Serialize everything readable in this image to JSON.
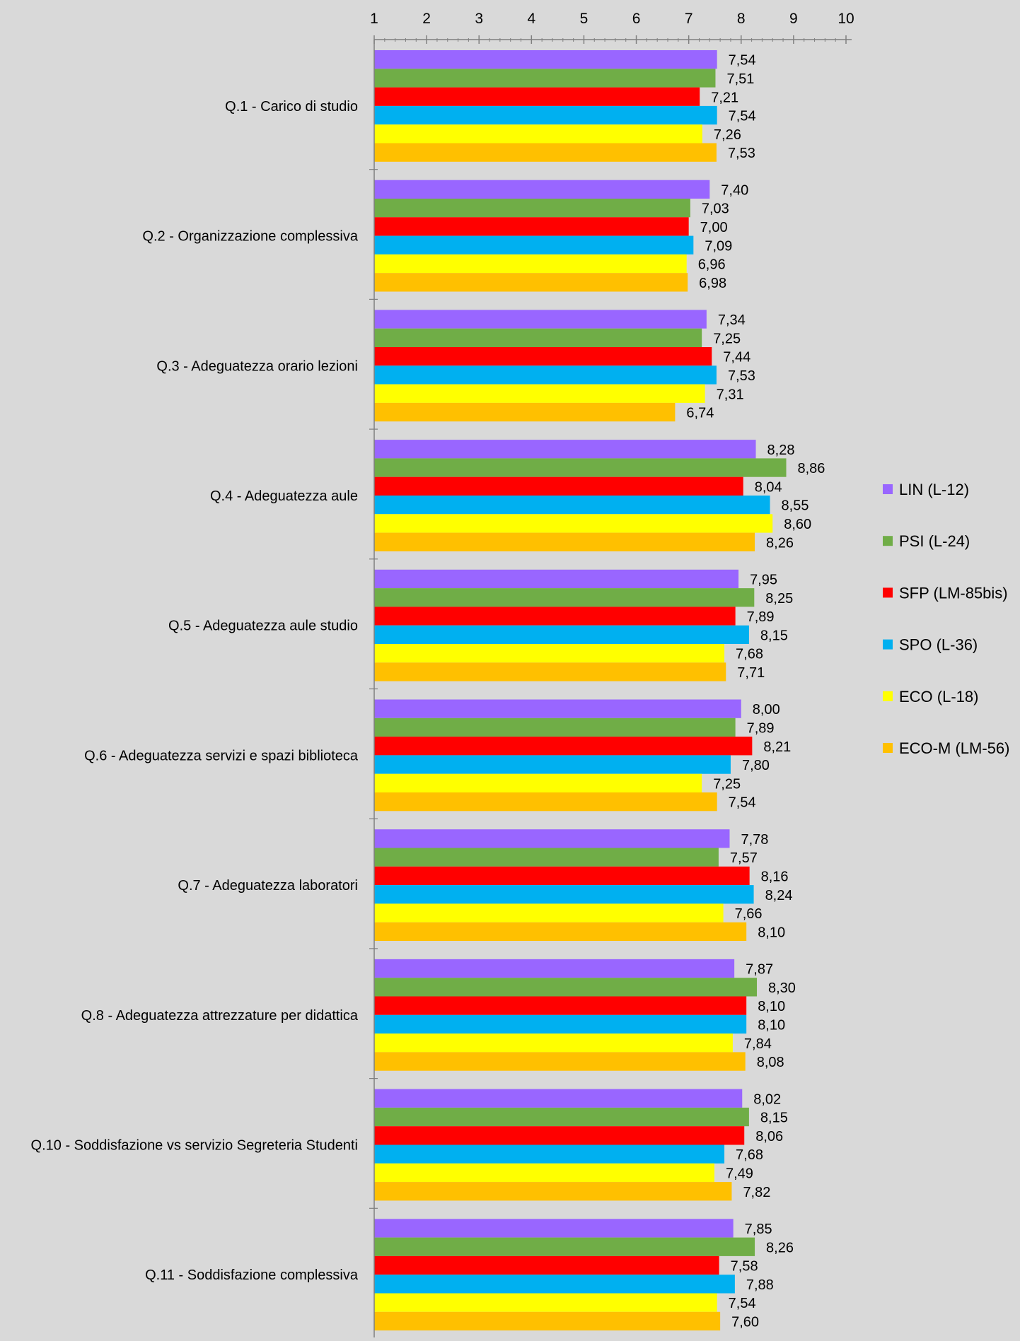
{
  "chart_data": {
    "type": "bar",
    "orientation": "horizontal",
    "title": "",
    "xlabel": "",
    "ylabel": "",
    "xlim": [
      1,
      10
    ],
    "x_ticks": [
      "1",
      "2",
      "3",
      "4",
      "5",
      "6",
      "7",
      "8",
      "9",
      "10"
    ],
    "x_axis_position": "top",
    "grid": false,
    "legend_position": "right",
    "categories": [
      "Q.1 - Carico di studio",
      "Q.2 - Organizzazione complessiva",
      "Q.3 - Adeguatezza orario lezioni",
      "Q.4 - Adeguatezza aule",
      "Q.5 - Adeguatezza aule studio",
      "Q.6 - Adeguatezza servizi e spazi biblioteca",
      "Q.7 - Adeguatezza laboratori",
      "Q.8 - Adeguatezza attrezzature per didattica",
      "Q.10 - Soddisfazione vs servizio Segreteria Studenti",
      "Q.11 - Soddisfazione complessiva"
    ],
    "series": [
      {
        "name": "LIN (L-12)",
        "color": "#9966ff",
        "values": [
          7.54,
          7.4,
          7.34,
          8.28,
          7.95,
          8.0,
          7.78,
          7.87,
          8.02,
          7.85
        ],
        "labels": [
          "7,54",
          "7,40",
          "7,34",
          "8,28",
          "7,95",
          "8,00",
          "7,78",
          "7,87",
          "8,02",
          "7,85"
        ]
      },
      {
        "name": "PSI (L-24)",
        "color": "#70ad47",
        "values": [
          7.51,
          7.03,
          7.25,
          8.86,
          8.25,
          7.89,
          7.57,
          8.3,
          8.15,
          8.26
        ],
        "labels": [
          "7,51",
          "7,03",
          "7,25",
          "8,86",
          "8,25",
          "7,89",
          "7,57",
          "8,30",
          "8,15",
          "8,26"
        ]
      },
      {
        "name": "SFP (LM-85bis)",
        "color": "#ff0000",
        "values": [
          7.21,
          7.0,
          7.44,
          8.04,
          7.89,
          8.21,
          8.16,
          8.1,
          8.06,
          7.58
        ],
        "labels": [
          "7,21",
          "7,00",
          "7,44",
          "8,04",
          "7,89",
          "8,21",
          "8,16",
          "8,10",
          "8,06",
          "7,58"
        ]
      },
      {
        "name": "SPO (L-36)",
        "color": "#00b0f0",
        "values": [
          7.54,
          7.09,
          7.53,
          8.55,
          8.15,
          7.8,
          8.24,
          8.1,
          7.68,
          7.88
        ],
        "labels": [
          "7,54",
          "7,09",
          "7,53",
          "8,55",
          "8,15",
          "7,80",
          "8,24",
          "8,10",
          "7,68",
          "7,88"
        ]
      },
      {
        "name": "ECO (L-18)",
        "color": "#ffff00",
        "values": [
          7.26,
          6.96,
          7.31,
          8.6,
          7.68,
          7.25,
          7.66,
          7.84,
          7.49,
          7.54
        ],
        "labels": [
          "7,26",
          "6,96",
          "7,31",
          "8,60",
          "7,68",
          "7,25",
          "7,66",
          "7,84",
          "7,49",
          "7,54"
        ]
      },
      {
        "name": "ECO-M (LM-56)",
        "color": "#ffc000",
        "values": [
          7.53,
          6.98,
          6.74,
          8.26,
          7.71,
          7.54,
          8.1,
          8.08,
          7.82,
          7.6
        ],
        "labels": [
          "7,53",
          "6,98",
          "6,74",
          "8,26",
          "7,71",
          "7,54",
          "8,10",
          "8,08",
          "7,82",
          "7,60"
        ]
      }
    ]
  }
}
